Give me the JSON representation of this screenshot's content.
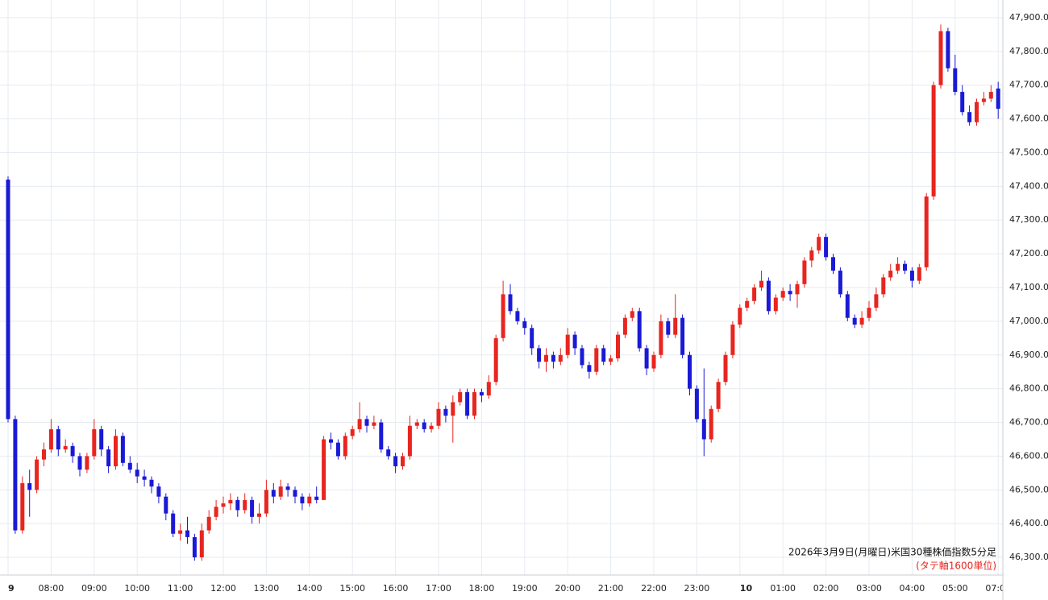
{
  "chart_data": {
    "type": "candlestick",
    "title": "2026年3月9日(月曜日)米国30種株価指数5分足",
    "subtitle": "(タテ軸1600単位)",
    "up_color": "#e8251f",
    "down_color": "#1a1ad6",
    "grid": true,
    "ylim": [
      46250,
      47950
    ],
    "yticks": [
      {
        "value": 46300,
        "label": "46,300.00"
      },
      {
        "value": 46400,
        "label": "46,400.00"
      },
      {
        "value": 46500,
        "label": "46,500.00"
      },
      {
        "value": 46600,
        "label": "46,600.00"
      },
      {
        "value": 46700,
        "label": "46,700.00"
      },
      {
        "value": 46800,
        "label": "46,800.00"
      },
      {
        "value": 46900,
        "label": "46,900.00"
      },
      {
        "value": 47000,
        "label": "47,000.00"
      },
      {
        "value": 47100,
        "label": "47,100.00"
      },
      {
        "value": 47200,
        "label": "47,200.00"
      },
      {
        "value": 47300,
        "label": "47,300.00"
      },
      {
        "value": 47400,
        "label": "47,400.00"
      },
      {
        "value": 47500,
        "label": "47,500.00"
      },
      {
        "value": 47600,
        "label": "47,600.00"
      },
      {
        "value": 47700,
        "label": "47,700.00"
      },
      {
        "value": 47800,
        "label": "47,800.00"
      },
      {
        "value": 47900,
        "label": "47,900.00"
      }
    ],
    "categories": [
      "9",
      null,
      null,
      null,
      null,
      null,
      "08:00",
      null,
      null,
      null,
      null,
      null,
      "09:00",
      null,
      null,
      null,
      null,
      null,
      "10:00",
      null,
      null,
      null,
      null,
      null,
      "11:00",
      null,
      null,
      null,
      null,
      null,
      "12:00",
      null,
      null,
      null,
      null,
      null,
      "13:00",
      null,
      null,
      null,
      null,
      null,
      "14:00",
      null,
      null,
      null,
      null,
      null,
      "15:00",
      null,
      null,
      null,
      null,
      null,
      "16:00",
      null,
      null,
      null,
      null,
      null,
      "17:00",
      null,
      null,
      null,
      null,
      null,
      "18:00",
      null,
      null,
      null,
      null,
      null,
      "19:00",
      null,
      null,
      null,
      null,
      null,
      "20:00",
      null,
      null,
      null,
      null,
      null,
      "21:00",
      null,
      null,
      null,
      null,
      null,
      "22:00",
      null,
      null,
      null,
      null,
      null,
      "23:00",
      null,
      null,
      null,
      null,
      null,
      "10",
      null,
      null,
      null,
      null,
      null,
      "01:00",
      null,
      null,
      null,
      null,
      null,
      "02:00",
      null,
      null,
      null,
      null,
      null,
      "03:00",
      null,
      null,
      null,
      null,
      null,
      "04:00",
      null,
      null,
      null,
      null,
      null,
      "05:00",
      null,
      null,
      null,
      null,
      null,
      "07:00"
    ],
    "ohlc": [
      [
        47420,
        47430,
        46700,
        46710
      ],
      [
        46710,
        46720,
        46370,
        46380
      ],
      [
        46380,
        46540,
        46370,
        46520
      ],
      [
        46520,
        46560,
        46420,
        46500
      ],
      [
        46500,
        46600,
        46490,
        46590
      ],
      [
        46590,
        46640,
        46570,
        46620
      ],
      [
        46620,
        46710,
        46610,
        46680
      ],
      [
        46680,
        46690,
        46600,
        46620
      ],
      [
        46620,
        46650,
        46610,
        46630
      ],
      [
        46630,
        46640,
        46580,
        46600
      ],
      [
        46600,
        46610,
        46540,
        46560
      ],
      [
        46560,
        46610,
        46550,
        46600
      ],
      [
        46600,
        46710,
        46590,
        46680
      ],
      [
        46680,
        46690,
        46600,
        46620
      ],
      [
        46620,
        46630,
        46550,
        46570
      ],
      [
        46570,
        46680,
        46560,
        46660
      ],
      [
        46660,
        46670,
        46570,
        46580
      ],
      [
        46580,
        46600,
        46550,
        46560
      ],
      [
        46560,
        46580,
        46520,
        46540
      ],
      [
        46540,
        46560,
        46510,
        46530
      ],
      [
        46530,
        46540,
        46490,
        46510
      ],
      [
        46510,
        46520,
        46460,
        46480
      ],
      [
        46480,
        46490,
        46410,
        46430
      ],
      [
        46430,
        46440,
        46360,
        46370
      ],
      [
        46370,
        46400,
        46350,
        46380
      ],
      [
        46380,
        46420,
        46340,
        46360
      ],
      [
        46360,
        46370,
        46290,
        46300
      ],
      [
        46300,
        46400,
        46290,
        46380
      ],
      [
        46380,
        46440,
        46370,
        46420
      ],
      [
        46420,
        46470,
        46410,
        46450
      ],
      [
        46450,
        46480,
        46430,
        46460
      ],
      [
        46460,
        46490,
        46440,
        46470
      ],
      [
        46470,
        46480,
        46420,
        46440
      ],
      [
        46440,
        46490,
        46430,
        46470
      ],
      [
        46470,
        46480,
        46400,
        46420
      ],
      [
        46420,
        46460,
        46400,
        46430
      ],
      [
        46430,
        46530,
        46420,
        46500
      ],
      [
        46500,
        46520,
        46460,
        46480
      ],
      [
        46480,
        46530,
        46470,
        46510
      ],
      [
        46510,
        46520,
        46480,
        46500
      ],
      [
        46500,
        46510,
        46460,
        46480
      ],
      [
        46480,
        46490,
        46440,
        46460
      ],
      [
        46460,
        46490,
        46450,
        46480
      ],
      [
        46480,
        46510,
        46460,
        46470
      ],
      [
        46470,
        46660,
        46470,
        46650
      ],
      [
        46650,
        46670,
        46620,
        46640
      ],
      [
        46640,
        46650,
        46590,
        46600
      ],
      [
        46600,
        46670,
        46590,
        46660
      ],
      [
        46660,
        46690,
        46650,
        46680
      ],
      [
        46680,
        46760,
        46670,
        46710
      ],
      [
        46710,
        46720,
        46670,
        46690
      ],
      [
        46690,
        46720,
        46680,
        46700
      ],
      [
        46700,
        46710,
        46610,
        46620
      ],
      [
        46620,
        46630,
        46590,
        46600
      ],
      [
        46600,
        46610,
        46550,
        46570
      ],
      [
        46570,
        46610,
        46560,
        46600
      ],
      [
        46600,
        46720,
        46590,
        46690
      ],
      [
        46690,
        46710,
        46680,
        46700
      ],
      [
        46700,
        46710,
        46670,
        46680
      ],
      [
        46680,
        46700,
        46670,
        46690
      ],
      [
        46690,
        46760,
        46680,
        46740
      ],
      [
        46740,
        46750,
        46700,
        46720
      ],
      [
        46720,
        46780,
        46640,
        46760
      ],
      [
        46760,
        46800,
        46750,
        46790
      ],
      [
        46790,
        46800,
        46710,
        46720
      ],
      [
        46720,
        46800,
        46710,
        46790
      ],
      [
        46790,
        46800,
        46760,
        46780
      ],
      [
        46780,
        46840,
        46770,
        46820
      ],
      [
        46820,
        46960,
        46810,
        46950
      ],
      [
        46950,
        47120,
        46940,
        47080
      ],
      [
        47080,
        47110,
        47020,
        47030
      ],
      [
        47030,
        47040,
        46990,
        47000
      ],
      [
        47000,
        47010,
        46960,
        46980
      ],
      [
        46980,
        46990,
        46900,
        46920
      ],
      [
        46920,
        46930,
        46860,
        46880
      ],
      [
        46880,
        46920,
        46850,
        46900
      ],
      [
        46900,
        46910,
        46860,
        46880
      ],
      [
        46880,
        46920,
        46870,
        46900
      ],
      [
        46900,
        46980,
        46890,
        46960
      ],
      [
        46960,
        46970,
        46900,
        46920
      ],
      [
        46920,
        46930,
        46860,
        46870
      ],
      [
        46870,
        46880,
        46830,
        46850
      ],
      [
        46850,
        46930,
        46840,
        46920
      ],
      [
        46920,
        46930,
        46870,
        46880
      ],
      [
        46880,
        46900,
        46870,
        46890
      ],
      [
        46890,
        46970,
        46880,
        46960
      ],
      [
        46960,
        47020,
        46950,
        47010
      ],
      [
        47010,
        47040,
        47000,
        47030
      ],
      [
        47030,
        47040,
        46910,
        46920
      ],
      [
        46920,
        46930,
        46840,
        46860
      ],
      [
        46860,
        46910,
        46850,
        46900
      ],
      [
        46900,
        47020,
        46890,
        47000
      ],
      [
        47000,
        47010,
        46950,
        46960
      ],
      [
        46960,
        47080,
        46950,
        47010
      ],
      [
        47010,
        47020,
        46890,
        46900
      ],
      [
        46900,
        46910,
        46780,
        46800
      ],
      [
        46800,
        46810,
        46700,
        46710
      ],
      [
        46710,
        46860,
        46600,
        46650
      ],
      [
        46650,
        46750,
        46640,
        46740
      ],
      [
        46740,
        46830,
        46730,
        46820
      ],
      [
        46820,
        46910,
        46810,
        46900
      ],
      [
        46900,
        47000,
        46890,
        46990
      ],
      [
        46990,
        47050,
        46980,
        47040
      ],
      [
        47040,
        47070,
        47030,
        47060
      ],
      [
        47060,
        47110,
        47050,
        47100
      ],
      [
        47100,
        47150,
        47090,
        47120
      ],
      [
        47120,
        47130,
        47020,
        47030
      ],
      [
        47030,
        47080,
        47020,
        47070
      ],
      [
        47070,
        47100,
        47060,
        47090
      ],
      [
        47090,
        47110,
        47060,
        47080
      ],
      [
        47080,
        47120,
        47040,
        47110
      ],
      [
        47110,
        47190,
        47100,
        47180
      ],
      [
        47180,
        47220,
        47160,
        47210
      ],
      [
        47210,
        47260,
        47200,
        47250
      ],
      [
        47250,
        47260,
        47180,
        47190
      ],
      [
        47190,
        47200,
        47140,
        47150
      ],
      [
        47150,
        47160,
        47070,
        47080
      ],
      [
        47080,
        47090,
        47000,
        47010
      ],
      [
        47010,
        47020,
        46980,
        46990
      ],
      [
        46990,
        47030,
        46980,
        47010
      ],
      [
        47010,
        47060,
        47000,
        47040
      ],
      [
        47040,
        47100,
        47030,
        47080
      ],
      [
        47080,
        47140,
        47070,
        47130
      ],
      [
        47130,
        47170,
        47120,
        47150
      ],
      [
        47150,
        47190,
        47140,
        47170
      ],
      [
        47170,
        47180,
        47140,
        47150
      ],
      [
        47150,
        47160,
        47100,
        47120
      ],
      [
        47120,
        47170,
        47110,
        47160
      ],
      [
        47160,
        47380,
        47150,
        47370
      ],
      [
        47370,
        47710,
        47360,
        47700
      ],
      [
        47700,
        47880,
        47690,
        47860
      ],
      [
        47860,
        47870,
        47740,
        47750
      ],
      [
        47750,
        47790,
        47670,
        47680
      ],
      [
        47680,
        47700,
        47610,
        47620
      ],
      [
        47620,
        47640,
        47580,
        47590
      ],
      [
        47590,
        47660,
        47580,
        47650
      ],
      [
        47650,
        47680,
        47640,
        47660
      ],
      [
        47660,
        47700,
        47650,
        47680
      ],
      [
        47690,
        47710,
        47600,
        47630
      ]
    ]
  }
}
